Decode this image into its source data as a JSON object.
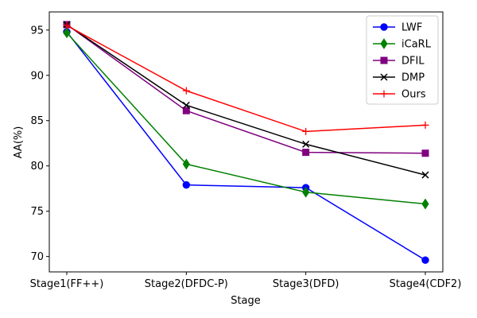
{
  "chart_data": {
    "type": "line",
    "title": "",
    "xlabel": "Stage",
    "ylabel": "AA(%)",
    "categories": [
      "Stage1(FF++)",
      "Stage2(DFDC-P)",
      "Stage3(DFD)",
      "Stage4(CDF2)"
    ],
    "ylim": [
      68.3,
      97.0
    ],
    "yticks": [
      70,
      75,
      80,
      85,
      90,
      95
    ],
    "grid": false,
    "legend_position": "top-right",
    "series": [
      {
        "name": "LWF",
        "color": "#0000ff",
        "marker": "circle",
        "values": [
          94.8,
          77.9,
          77.6,
          69.6
        ]
      },
      {
        "name": "iCaRL",
        "color": "#008000",
        "marker": "diamond",
        "values": [
          94.7,
          80.2,
          77.1,
          75.8
        ]
      },
      {
        "name": "DFIL",
        "color": "#800080",
        "marker": "square",
        "values": [
          95.6,
          86.1,
          81.5,
          81.4
        ]
      },
      {
        "name": "DMP",
        "color": "#000000",
        "marker": "x",
        "values": [
          95.6,
          86.7,
          82.4,
          79.0
        ]
      },
      {
        "name": "Ours",
        "color": "#ff0000",
        "marker": "plus",
        "values": [
          95.5,
          88.3,
          83.8,
          84.5
        ]
      }
    ]
  }
}
